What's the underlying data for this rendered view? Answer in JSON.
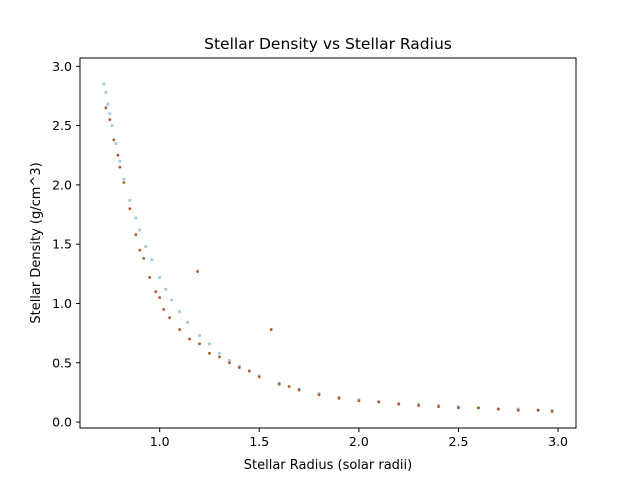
{
  "chart_data": {
    "type": "scatter",
    "title": "Stellar Density vs Stellar Radius",
    "xlabel": "Stellar Radius (solar radii)",
    "ylabel": "Stellar Density (g/cm^3)",
    "xlim": [
      0.6,
      3.09
    ],
    "ylim": [
      -0.05,
      3.07
    ],
    "xticks": [
      1.0,
      1.5,
      2.0,
      2.5,
      3.0
    ],
    "xtick_labels": [
      "1.0",
      "1.5",
      "2.0",
      "2.5",
      "3.0"
    ],
    "yticks": [
      0.0,
      0.5,
      1.0,
      1.5,
      2.0,
      2.5,
      3.0
    ],
    "ytick_labels": [
      "0.0",
      "0.5",
      "1.0",
      "1.5",
      "2.0",
      "2.5",
      "3.0"
    ],
    "grid": false,
    "legend": "none",
    "colors": [
      "#a6cee3",
      "#b15928"
    ],
    "series": [
      {
        "color": "#a6cee3",
        "x": [
          0.72,
          0.73,
          0.74,
          0.75,
          0.76,
          0.78,
          0.8,
          0.82,
          0.85,
          0.88,
          0.9,
          0.93,
          0.96,
          1.0,
          1.03,
          1.06,
          1.1,
          1.14,
          1.2,
          1.25,
          1.3,
          1.35,
          1.4,
          1.5,
          1.6,
          1.7,
          1.8,
          1.9,
          2.0,
          2.1,
          2.2,
          2.3,
          2.4,
          2.5,
          2.6,
          2.7,
          2.8,
          2.9,
          2.97
        ],
        "y": [
          2.85,
          2.78,
          2.68,
          2.6,
          2.5,
          2.35,
          2.2,
          2.05,
          1.87,
          1.72,
          1.62,
          1.48,
          1.37,
          1.22,
          1.12,
          1.03,
          0.93,
          0.84,
          0.73,
          0.66,
          0.58,
          0.52,
          0.47,
          0.39,
          0.33,
          0.28,
          0.24,
          0.21,
          0.19,
          0.17,
          0.16,
          0.15,
          0.14,
          0.13,
          0.12,
          0.11,
          0.11,
          0.1,
          0.1
        ]
      },
      {
        "color": "#b15928",
        "x": [
          0.73,
          0.75,
          0.77,
          0.79,
          0.8,
          0.82,
          0.85,
          0.88,
          0.9,
          0.92,
          0.95,
          0.98,
          1.0,
          1.02,
          1.05,
          1.1,
          1.15,
          1.19,
          1.2,
          1.25,
          1.3,
          1.35,
          1.4,
          1.45,
          1.5,
          1.56,
          1.6,
          1.65,
          1.7,
          1.8,
          1.9,
          2.0,
          2.1,
          2.2,
          2.3,
          2.4,
          2.5,
          2.6,
          2.7,
          2.8,
          2.9,
          2.97
        ],
        "y": [
          2.65,
          2.55,
          2.38,
          2.25,
          2.15,
          2.02,
          1.8,
          1.58,
          1.45,
          1.38,
          1.22,
          1.1,
          1.05,
          0.95,
          0.88,
          0.78,
          0.7,
          1.27,
          0.66,
          0.58,
          0.55,
          0.5,
          0.46,
          0.43,
          0.38,
          0.78,
          0.32,
          0.3,
          0.27,
          0.23,
          0.2,
          0.18,
          0.17,
          0.15,
          0.14,
          0.13,
          0.12,
          0.12,
          0.11,
          0.1,
          0.1,
          0.09
        ]
      }
    ]
  }
}
